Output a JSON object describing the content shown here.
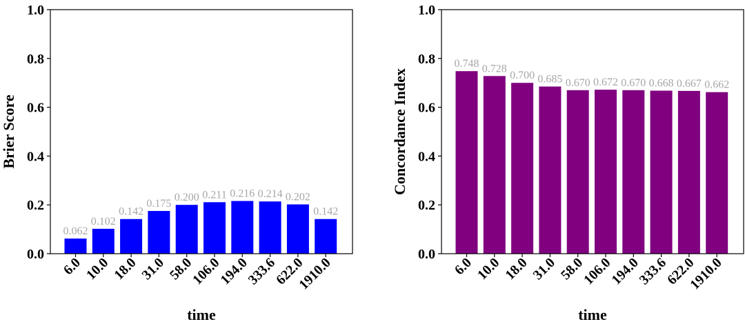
{
  "chart_data": [
    {
      "type": "bar",
      "categories": [
        "6.0",
        "10.0",
        "18.0",
        "31.0",
        "58.0",
        "106.0",
        "194.0",
        "333.6",
        "622.0",
        "1910.0"
      ],
      "values": [
        0.062,
        0.102,
        0.142,
        0.175,
        0.2,
        0.211,
        0.216,
        0.214,
        0.202,
        0.142
      ],
      "data_labels": [
        "0.062",
        "0.102",
        "0.142",
        "0.175",
        "0.200",
        "0.211",
        "0.216",
        "0.214",
        "0.202",
        "0.142"
      ],
      "xlabel": "time",
      "ylabel": "Brier Score",
      "ylim": [
        0,
        1.0
      ],
      "yticks": [
        "0.0",
        "0.2",
        "0.4",
        "0.6",
        "0.8",
        "1.0"
      ],
      "color": "#0000ff",
      "grid": false
    },
    {
      "type": "bar",
      "categories": [
        "6.0",
        "10.0",
        "18.0",
        "31.0",
        "58.0",
        "106.0",
        "194.0",
        "333.6",
        "622.0",
        "1910.0"
      ],
      "values": [
        0.748,
        0.728,
        0.7,
        0.685,
        0.67,
        0.672,
        0.67,
        0.668,
        0.667,
        0.662
      ],
      "data_labels": [
        "0.748",
        "0.728",
        "0.700",
        "0.685",
        "0.670",
        "0.672",
        "0.670",
        "0.668",
        "0.667",
        "0.662"
      ],
      "xlabel": "time",
      "ylabel": "Concordance Index",
      "ylim": [
        0,
        1.0
      ],
      "yticks": [
        "0.0",
        "0.2",
        "0.4",
        "0.6",
        "0.8",
        "1.0"
      ],
      "color": "#800080",
      "grid": false
    }
  ]
}
